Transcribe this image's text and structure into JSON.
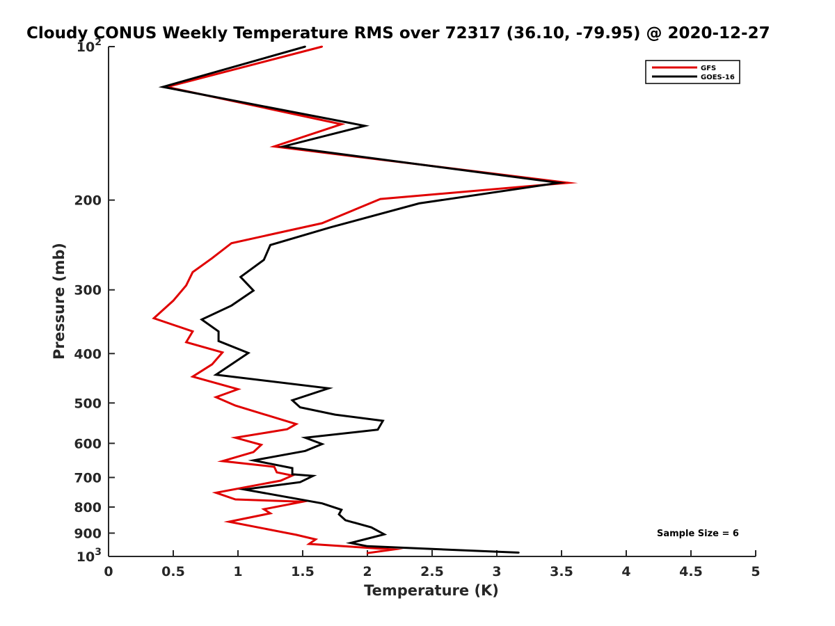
{
  "chart_data": {
    "type": "line",
    "title": "Cloudy CONUS Weekly Temperature RMS over 72317 (36.10, -79.95) @ 2020-12-27",
    "xlabel": "Temperature (K)",
    "ylabel": "Pressure (mb)",
    "xlim": [
      0,
      5
    ],
    "ylim": [
      100,
      1000
    ],
    "y_scale": "log",
    "y_reversed": true,
    "grid": false,
    "legend_position": "top-right",
    "x_ticks": [
      0,
      0.5,
      1,
      1.5,
      2,
      2.5,
      3,
      3.5,
      4,
      4.5,
      5
    ],
    "x_tick_labels": [
      "0",
      "0.5",
      "1",
      "1.5",
      "2",
      "2.5",
      "3",
      "3.5",
      "4",
      "4.5",
      "5"
    ],
    "y_ticks": [
      {
        "value": 100,
        "label": "10",
        "sup": "2"
      },
      {
        "value": 200,
        "label": "200",
        "sup": ""
      },
      {
        "value": 300,
        "label": "300",
        "sup": ""
      },
      {
        "value": 400,
        "label": "400",
        "sup": ""
      },
      {
        "value": 500,
        "label": "500",
        "sup": ""
      },
      {
        "value": 600,
        "label": "600",
        "sup": ""
      },
      {
        "value": 700,
        "label": "700",
        "sup": ""
      },
      {
        "value": 800,
        "label": "800",
        "sup": ""
      },
      {
        "value": 900,
        "label": "900",
        "sup": ""
      },
      {
        "value": 1000,
        "label": "10",
        "sup": "3"
      }
    ],
    "annotation": "Sample Size = 6",
    "series": [
      {
        "name": "GFS",
        "color": "#e00000",
        "points": [
          [
            1.65,
            100
          ],
          [
            0.45,
            120
          ],
          [
            1.8,
            142
          ],
          [
            1.28,
            157
          ],
          [
            3.55,
            185
          ],
          [
            2.1,
            199
          ],
          [
            1.65,
            222
          ],
          [
            0.95,
            243
          ],
          [
            0.8,
            260
          ],
          [
            0.65,
            277
          ],
          [
            0.6,
            294
          ],
          [
            0.5,
            315
          ],
          [
            0.35,
            341
          ],
          [
            0.65,
            362
          ],
          [
            0.6,
            380
          ],
          [
            0.88,
            398
          ],
          [
            0.8,
            420
          ],
          [
            0.65,
            444
          ],
          [
            1.0,
            470
          ],
          [
            0.83,
            487
          ],
          [
            0.98,
            506
          ],
          [
            1.45,
            550
          ],
          [
            1.38,
            563
          ],
          [
            0.98,
            585
          ],
          [
            1.18,
            604
          ],
          [
            1.12,
            624
          ],
          [
            0.88,
            650
          ],
          [
            1.28,
            667
          ],
          [
            1.3,
            684
          ],
          [
            1.42,
            694
          ],
          [
            1.33,
            710
          ],
          [
            0.83,
            750
          ],
          [
            0.98,
            773
          ],
          [
            1.5,
            781
          ],
          [
            1.2,
            808
          ],
          [
            1.25,
            823
          ],
          [
            0.93,
            855
          ],
          [
            1.45,
            907
          ],
          [
            1.6,
            926
          ],
          [
            1.55,
            945
          ],
          [
            2.2,
            969
          ],
          [
            2.0,
            985
          ]
        ]
      },
      {
        "name": "GOES-16",
        "color": "#000000",
        "points": [
          [
            1.52,
            100
          ],
          [
            0.42,
            120
          ],
          [
            1.98,
            143
          ],
          [
            1.35,
            157
          ],
          [
            3.48,
            185
          ],
          [
            2.4,
            203
          ],
          [
            1.72,
            226
          ],
          [
            1.25,
            245
          ],
          [
            1.2,
            262
          ],
          [
            1.02,
            283
          ],
          [
            1.12,
            301
          ],
          [
            0.95,
            322
          ],
          [
            0.72,
            343
          ],
          [
            0.85,
            362
          ],
          [
            0.85,
            378
          ],
          [
            1.08,
            399
          ],
          [
            0.95,
            420
          ],
          [
            0.83,
            440
          ],
          [
            1.7,
            468
          ],
          [
            1.42,
            494
          ],
          [
            1.48,
            510
          ],
          [
            1.75,
            527
          ],
          [
            2.12,
            542
          ],
          [
            2.08,
            564
          ],
          [
            1.52,
            585
          ],
          [
            1.65,
            602
          ],
          [
            1.52,
            621
          ],
          [
            1.12,
            648
          ],
          [
            1.42,
            671
          ],
          [
            1.42,
            690
          ],
          [
            1.58,
            695
          ],
          [
            1.48,
            715
          ],
          [
            1.05,
            739
          ],
          [
            1.65,
            787
          ],
          [
            1.8,
            810
          ],
          [
            1.78,
            827
          ],
          [
            1.83,
            849
          ],
          [
            2.03,
            877
          ],
          [
            2.13,
            905
          ],
          [
            1.87,
            941
          ],
          [
            2.0,
            955
          ],
          [
            3.17,
            983
          ]
        ]
      }
    ]
  }
}
